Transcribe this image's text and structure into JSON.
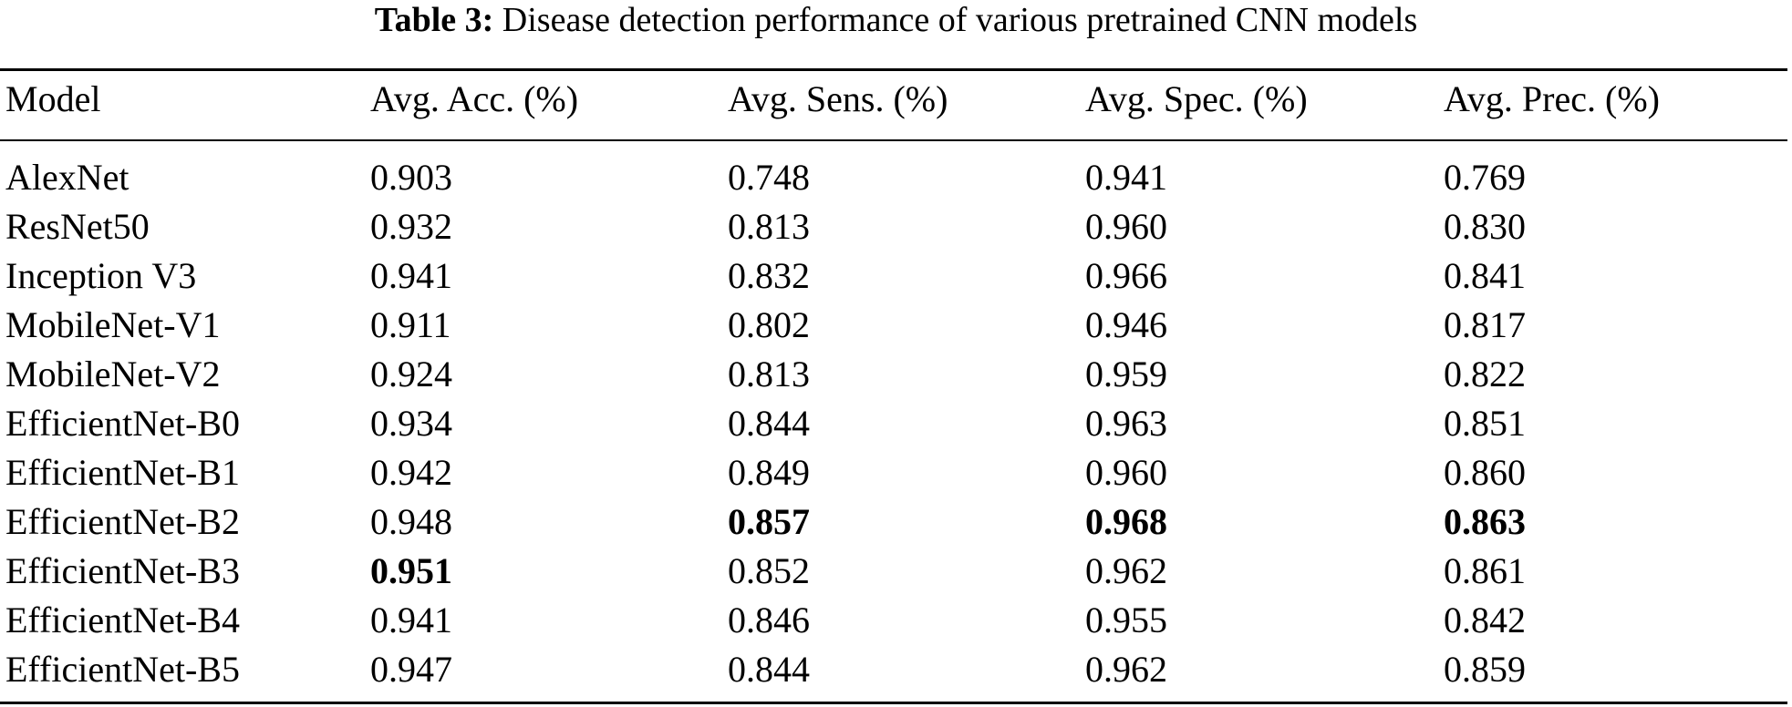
{
  "caption": {
    "label": "Table 3:",
    "text": "Disease detection performance of various pretrained CNN models"
  },
  "table": {
    "headers": [
      "Model",
      "Avg. Acc. (%)",
      "Avg. Sens. (%)",
      "Avg. Spec. (%)",
      "Avg. Prec. (%)"
    ],
    "rows": [
      [
        "AlexNet",
        "0.903",
        "0.748",
        "0.941",
        "0.769"
      ],
      [
        "ResNet50",
        "0.932",
        "0.813",
        "0.960",
        "0.830"
      ],
      [
        "Inception V3",
        "0.941",
        "0.832",
        "0.966",
        "0.841"
      ],
      [
        "MobileNet-V1",
        "0.911",
        "0.802",
        "0.946",
        "0.817"
      ],
      [
        "MobileNet-V2",
        "0.924",
        "0.813",
        "0.959",
        "0.822"
      ],
      [
        "EfficientNet-B0",
        "0.934",
        "0.844",
        "0.963",
        "0.851"
      ],
      [
        "EfficientNet-B1",
        "0.942",
        "0.849",
        "0.960",
        "0.860"
      ],
      [
        "EfficientNet-B2",
        "0.948",
        "0.857",
        "0.968",
        "0.863"
      ],
      [
        "EfficientNet-B3",
        "0.951",
        "0.852",
        "0.962",
        "0.861"
      ],
      [
        "EfficientNet-B4",
        "0.941",
        "0.846",
        "0.955",
        "0.842"
      ],
      [
        "EfficientNet-B5",
        "0.947",
        "0.844",
        "0.962",
        "0.859"
      ]
    ],
    "bold_cells": [
      [
        7,
        2
      ],
      [
        7,
        3
      ],
      [
        7,
        4
      ],
      [
        8,
        1
      ]
    ]
  }
}
